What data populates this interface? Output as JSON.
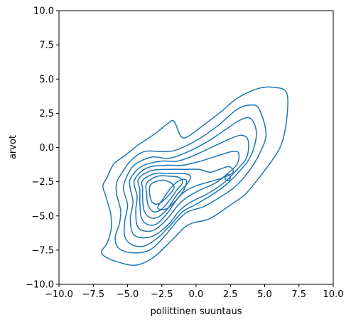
{
  "chart_data": {
    "type": "contour",
    "xlabel": "poliittinen suuntaus",
    "ylabel": "arvot",
    "xlim": [
      -10,
      10
    ],
    "ylim": [
      -10,
      10
    ],
    "xticks": [
      -10,
      -7.5,
      -5,
      -2.5,
      0,
      2.5,
      5,
      7.5,
      10
    ],
    "yticks": [
      -10,
      -7.5,
      -5,
      -2.5,
      0,
      2.5,
      5,
      7.5,
      10
    ],
    "xtick_labels": [
      "−10.0",
      "−7.5",
      "−5.0",
      "−2.5",
      "0.0",
      "2.5",
      "5.0",
      "7.5",
      "10.0"
    ],
    "ytick_labels": [
      "−10.0",
      "−7.5",
      "−5.0",
      "−2.5",
      "0.0",
      "2.5",
      "5.0",
      "7.5",
      "10.0"
    ],
    "grid": false,
    "line_color": "#1f77b4",
    "levels": [
      {
        "level": 1,
        "points": [
          [
            -6.5,
            -2.2
          ],
          [
            -6.0,
            -1.2
          ],
          [
            -5.2,
            -0.6
          ],
          [
            -4.2,
            0.2
          ],
          [
            -3.0,
            1.0
          ],
          [
            -2.0,
            1.8
          ],
          [
            -1.6,
            1.9
          ],
          [
            -1.1,
            0.8
          ],
          [
            -0.6,
            0.8
          ],
          [
            0.5,
            1.6
          ],
          [
            1.8,
            2.6
          ],
          [
            3.0,
            3.6
          ],
          [
            4.5,
            4.3
          ],
          [
            5.6,
            4.4
          ],
          [
            6.6,
            4.0
          ],
          [
            6.6,
            2.0
          ],
          [
            6.2,
            0.2
          ],
          [
            5.5,
            -1.0
          ],
          [
            4.6,
            -2.2
          ],
          [
            3.6,
            -3.4
          ],
          [
            2.5,
            -4.2
          ],
          [
            1.0,
            -5.2
          ],
          [
            -0.2,
            -5.5
          ],
          [
            -0.8,
            -5.8
          ],
          [
            -1.4,
            -6.4
          ],
          [
            -2.2,
            -7.2
          ],
          [
            -3.2,
            -8.1
          ],
          [
            -4.4,
            -8.6
          ],
          [
            -5.6,
            -8.4
          ],
          [
            -6.6,
            -8.0
          ],
          [
            -6.9,
            -7.6
          ],
          [
            -6.5,
            -7.0
          ],
          [
            -6.2,
            -6.0
          ],
          [
            -6.2,
            -5.0
          ],
          [
            -6.4,
            -4.2
          ],
          [
            -6.6,
            -3.5
          ],
          [
            -6.8,
            -2.8
          ]
        ]
      },
      {
        "level": 2,
        "points": [
          [
            -5.5,
            -2.0
          ],
          [
            -4.8,
            -1.0
          ],
          [
            -3.8,
            -0.3
          ],
          [
            -2.5,
            -0.3
          ],
          [
            -1.5,
            -0.2
          ],
          [
            0.0,
            0.5
          ],
          [
            1.6,
            1.6
          ],
          [
            3.0,
            2.8
          ],
          [
            4.0,
            3.1
          ],
          [
            4.6,
            2.8
          ],
          [
            5.1,
            1.0
          ],
          [
            4.6,
            -0.5
          ],
          [
            3.8,
            -1.8
          ],
          [
            2.8,
            -2.9
          ],
          [
            1.8,
            -3.6
          ],
          [
            0.6,
            -4.3
          ],
          [
            -0.6,
            -4.7
          ],
          [
            -1.4,
            -5.4
          ],
          [
            -2.4,
            -6.6
          ],
          [
            -3.4,
            -7.5
          ],
          [
            -4.6,
            -7.7
          ],
          [
            -5.6,
            -7.4
          ],
          [
            -5.9,
            -6.6
          ],
          [
            -5.6,
            -5.6
          ],
          [
            -5.5,
            -4.6
          ],
          [
            -5.8,
            -3.4
          ],
          [
            -5.8,
            -2.6
          ]
        ]
      },
      {
        "level": 3,
        "points": [
          [
            -5.0,
            -2.0
          ],
          [
            -4.4,
            -1.2
          ],
          [
            -3.2,
            -0.7
          ],
          [
            -2.0,
            -0.8
          ],
          [
            -0.8,
            -0.4
          ],
          [
            0.6,
            0.3
          ],
          [
            2.0,
            1.2
          ],
          [
            3.2,
            2.0
          ],
          [
            4.0,
            2.1
          ],
          [
            4.4,
            1.0
          ],
          [
            4.0,
            -0.6
          ],
          [
            3.2,
            -1.7
          ],
          [
            2.2,
            -2.7
          ],
          [
            1.1,
            -3.5
          ],
          [
            -0.1,
            -4.2
          ],
          [
            -1.0,
            -4.7
          ],
          [
            -1.8,
            -5.6
          ],
          [
            -2.8,
            -6.6
          ],
          [
            -3.8,
            -7.2
          ],
          [
            -4.7,
            -7.1
          ],
          [
            -5.2,
            -6.5
          ],
          [
            -5.2,
            -5.4
          ],
          [
            -5.0,
            -4.2
          ],
          [
            -5.3,
            -3.0
          ]
        ]
      },
      {
        "level": 4,
        "points": [
          [
            -4.8,
            -2.3
          ],
          [
            -4.0,
            -1.4
          ],
          [
            -2.6,
            -1.0
          ],
          [
            -1.4,
            -1.0
          ],
          [
            -0.2,
            -0.6
          ],
          [
            1.1,
            0.0
          ],
          [
            2.4,
            0.6
          ],
          [
            3.3,
            0.9
          ],
          [
            3.8,
            0.5
          ],
          [
            3.7,
            -0.7
          ],
          [
            3.0,
            -1.6
          ],
          [
            2.0,
            -2.6
          ],
          [
            0.8,
            -3.4
          ],
          [
            -0.4,
            -4.0
          ],
          [
            -1.2,
            -4.6
          ],
          [
            -2.0,
            -5.6
          ],
          [
            -3.0,
            -6.4
          ],
          [
            -3.9,
            -6.6
          ],
          [
            -4.6,
            -6.3
          ],
          [
            -4.8,
            -5.2
          ],
          [
            -4.6,
            -4.0
          ],
          [
            -4.8,
            -3.0
          ]
        ]
      },
      {
        "level": 5,
        "points": [
          [
            -4.5,
            -2.4
          ],
          [
            -3.6,
            -1.5
          ],
          [
            -2.2,
            -1.3
          ],
          [
            -1.0,
            -1.3
          ],
          [
            0.3,
            -1.0
          ],
          [
            1.6,
            -0.6
          ],
          [
            2.6,
            -0.3
          ],
          [
            3.1,
            -0.4
          ],
          [
            3.0,
            -1.2
          ],
          [
            2.3,
            -1.9
          ],
          [
            1.4,
            -2.6
          ],
          [
            0.3,
            -3.1
          ],
          [
            -0.6,
            -3.6
          ],
          [
            -1.3,
            -4.2
          ],
          [
            -2.1,
            -5.2
          ],
          [
            -3.0,
            -6.0
          ],
          [
            -3.8,
            -6.1
          ],
          [
            -4.3,
            -5.7
          ],
          [
            -4.4,
            -4.6
          ],
          [
            -4.3,
            -3.6
          ]
        ]
      },
      {
        "level": 6,
        "points": [
          [
            -4.2,
            -2.3
          ],
          [
            -3.3,
            -1.7
          ],
          [
            -2.0,
            -1.6
          ],
          [
            -0.8,
            -1.6
          ],
          [
            0.2,
            -1.6
          ],
          [
            1.0,
            -1.8
          ],
          [
            1.7,
            -1.6
          ],
          [
            2.4,
            -1.4
          ],
          [
            2.7,
            -1.8
          ],
          [
            2.0,
            -2.2
          ],
          [
            1.0,
            -2.5
          ],
          [
            0.0,
            -2.8
          ],
          [
            -0.8,
            -3.2
          ],
          [
            -1.4,
            -3.8
          ],
          [
            -2.1,
            -4.8
          ],
          [
            -2.9,
            -5.6
          ],
          [
            -3.6,
            -5.6
          ],
          [
            -4.0,
            -5.1
          ],
          [
            -4.1,
            -4.1
          ],
          [
            -4.1,
            -3.1
          ]
        ]
      },
      {
        "level": 7,
        "points": [
          [
            -3.9,
            -2.4
          ],
          [
            -3.0,
            -1.9
          ],
          [
            -1.9,
            -1.9
          ],
          [
            -0.9,
            -1.9
          ],
          [
            -0.4,
            -2.1
          ],
          [
            -0.6,
            -2.6
          ],
          [
            -1.0,
            -3.0
          ],
          [
            -1.5,
            -3.6
          ],
          [
            -2.1,
            -4.5
          ],
          [
            -2.8,
            -5.1
          ],
          [
            -3.4,
            -5.1
          ],
          [
            -3.8,
            -4.6
          ],
          [
            -3.9,
            -3.7
          ],
          [
            -3.9,
            -3.0
          ]
        ]
      },
      {
        "level": 8,
        "points": [
          [
            -3.6,
            -2.6
          ],
          [
            -2.8,
            -2.1
          ],
          [
            -1.9,
            -2.1
          ],
          [
            -1.2,
            -2.2
          ],
          [
            -1.0,
            -2.6
          ],
          [
            -1.4,
            -3.1
          ],
          [
            -1.9,
            -3.8
          ],
          [
            -2.5,
            -4.5
          ],
          [
            -3.1,
            -4.7
          ],
          [
            -3.5,
            -4.2
          ],
          [
            -3.6,
            -3.4
          ]
        ]
      },
      {
        "level": 9,
        "points": [
          [
            -3.3,
            -2.7
          ],
          [
            -2.6,
            -2.4
          ],
          [
            -2.0,
            -2.5
          ],
          [
            -1.6,
            -2.9
          ],
          [
            -2.0,
            -3.5
          ],
          [
            -2.7,
            -4.1
          ],
          [
            -3.2,
            -4.0
          ],
          [
            -3.4,
            -3.3
          ]
        ]
      },
      {
        "level": 10,
        "points": [
          [
            -2.8,
            -4.4
          ],
          [
            -2.3,
            -3.6
          ],
          [
            -1.8,
            -2.9
          ],
          [
            -1.2,
            -2.4
          ],
          [
            -0.7,
            -2.4
          ],
          [
            -0.9,
            -3.1
          ],
          [
            -1.5,
            -3.9
          ],
          [
            -2.2,
            -4.5
          ]
        ]
      },
      {
        "level": 11,
        "points": [
          [
            2.2,
            -2.0
          ],
          [
            2.4,
            -2.0
          ],
          [
            2.5,
            -2.2
          ],
          [
            2.4,
            -2.4
          ],
          [
            2.2,
            -2.4
          ],
          [
            2.1,
            -2.2
          ]
        ]
      }
    ]
  }
}
